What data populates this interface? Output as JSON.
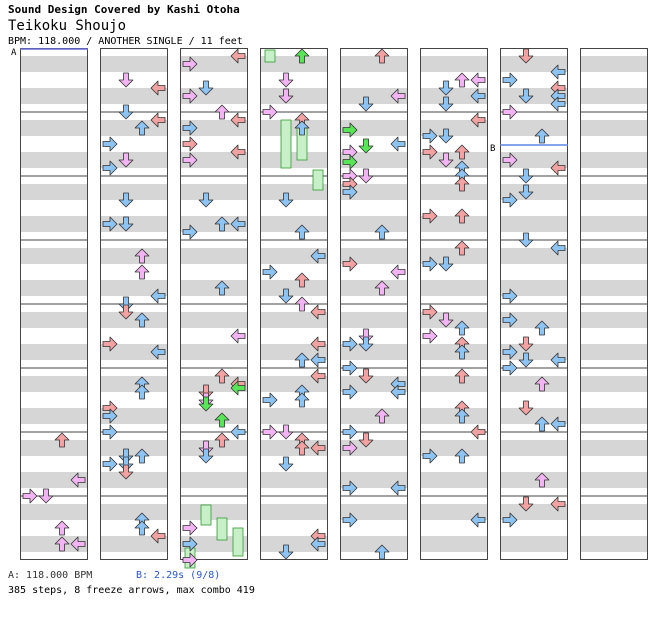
{
  "header": {
    "credit": "Sound Design Covered by Kashi Otoha",
    "song_title": "Teikoku Shoujo",
    "chart_info": "BPM: 118.000 / ANOTHER SINGLE / 11 feet"
  },
  "markers": {
    "a": "A",
    "b": "B"
  },
  "footer": {
    "bpm_line": "A: 118.000 BPM",
    "stop_line": "B: 2.29s (9/8)",
    "stats": "385 steps, 8 freeze arrows, max combo 419"
  },
  "colors": {
    "red": "#f2a2a2",
    "blue": "#8ec4f4",
    "pink": "#f2b4f2",
    "green": "#58e658",
    "freeze": "#c8f0c8",
    "stripe": "#d6d6d6",
    "line_a": "#6d6dd9",
    "line_b": "#5a86e0"
  }
}
